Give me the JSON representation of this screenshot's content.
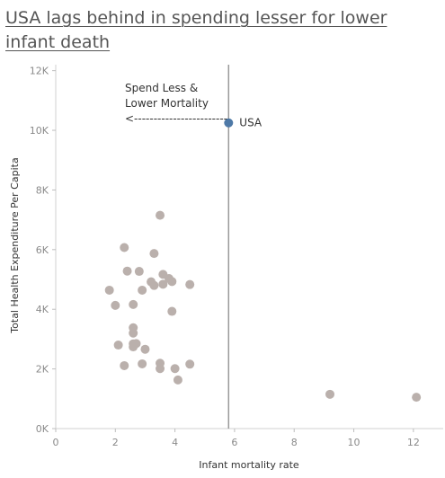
{
  "chart_data": {
    "type": "scatter",
    "title": "USA lags behind in spending lesser for lower infant death",
    "xlabel": "Infant mortality rate",
    "ylabel": "Total Health Expenditure Per Capita",
    "xlim": [
      0,
      13
    ],
    "ylim": [
      0,
      12200
    ],
    "x_ticks": [
      {
        "value": 0,
        "label": "0"
      },
      {
        "value": 2,
        "label": "2"
      },
      {
        "value": 4,
        "label": "4"
      },
      {
        "value": 6,
        "label": "6"
      },
      {
        "value": 8,
        "label": "8"
      },
      {
        "value": 10,
        "label": "10"
      },
      {
        "value": 12,
        "label": "12"
      }
    ],
    "y_ticks": [
      {
        "value": 0,
        "label": "0K"
      },
      {
        "value": 2000,
        "label": "2K"
      },
      {
        "value": 4000,
        "label": "4K"
      },
      {
        "value": 6000,
        "label": "6K"
      },
      {
        "value": 8000,
        "label": "8K"
      },
      {
        "value": 10000,
        "label": "10K"
      },
      {
        "value": 12000,
        "label": "12K"
      }
    ],
    "grid": false,
    "reference_line": {
      "axis": "x",
      "value": 5.8
    },
    "annotation": {
      "lines": [
        "Spend Less &",
        "Lower Mortality"
      ],
      "arrow_text": "<------------------------"
    },
    "colors": {
      "highlight": "#4e79a7",
      "other": "#bab0ac",
      "reference_line": "#999999"
    },
    "highlight": {
      "label": "USA",
      "x": 5.8,
      "y": 10250
    },
    "points": [
      {
        "x": 2.3,
        "y": 6070
      },
      {
        "x": 3.5,
        "y": 7150
      },
      {
        "x": 3.3,
        "y": 5870
      },
      {
        "x": 2.4,
        "y": 5280
      },
      {
        "x": 2.8,
        "y": 5270
      },
      {
        "x": 3.6,
        "y": 5170
      },
      {
        "x": 3.8,
        "y": 5030
      },
      {
        "x": 3.9,
        "y": 4930
      },
      {
        "x": 3.2,
        "y": 4920
      },
      {
        "x": 3.6,
        "y": 4840
      },
      {
        "x": 3.3,
        "y": 4800
      },
      {
        "x": 4.5,
        "y": 4830
      },
      {
        "x": 1.8,
        "y": 4640
      },
      {
        "x": 2.9,
        "y": 4640
      },
      {
        "x": 2.0,
        "y": 4130
      },
      {
        "x": 2.6,
        "y": 4160
      },
      {
        "x": 3.9,
        "y": 3930
      },
      {
        "x": 2.6,
        "y": 3380
      },
      {
        "x": 2.6,
        "y": 3200
      },
      {
        "x": 2.1,
        "y": 2800
      },
      {
        "x": 2.6,
        "y": 2840
      },
      {
        "x": 2.7,
        "y": 2850
      },
      {
        "x": 2.6,
        "y": 2740
      },
      {
        "x": 3.0,
        "y": 2660
      },
      {
        "x": 2.3,
        "y": 2110
      },
      {
        "x": 2.9,
        "y": 2170
      },
      {
        "x": 3.5,
        "y": 2190
      },
      {
        "x": 3.5,
        "y": 2010
      },
      {
        "x": 4.0,
        "y": 2010
      },
      {
        "x": 4.5,
        "y": 2160
      },
      {
        "x": 4.1,
        "y": 1630
      },
      {
        "x": 9.2,
        "y": 1150
      },
      {
        "x": 12.1,
        "y": 1050
      }
    ]
  }
}
